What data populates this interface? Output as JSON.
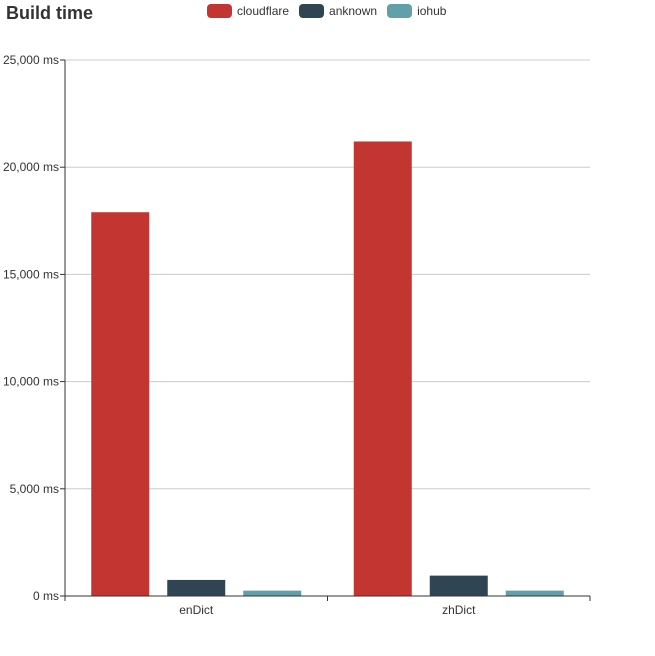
{
  "chart_data": {
    "type": "bar",
    "title": "Build time",
    "xlabel": "",
    "ylabel": "",
    "categories": [
      "enDict",
      "zhDict"
    ],
    "series": [
      {
        "name": "cloudflare",
        "color": "#c23531",
        "values": [
          17900,
          21200
        ]
      },
      {
        "name": "anknown",
        "color": "#2f4554",
        "values": [
          750,
          950
        ]
      },
      {
        "name": "iohub",
        "color": "#61a0a8",
        "values": [
          250,
          250
        ]
      }
    ],
    "ylim": [
      0,
      25000
    ],
    "yticks": [
      0,
      5000,
      10000,
      15000,
      20000,
      25000
    ],
    "ytick_labels": [
      "0 ms",
      "5,000 ms",
      "10,000 ms",
      "15,000 ms",
      "20,000 ms",
      "25,000 ms"
    ],
    "grid": true,
    "legend_position": "top-center"
  }
}
